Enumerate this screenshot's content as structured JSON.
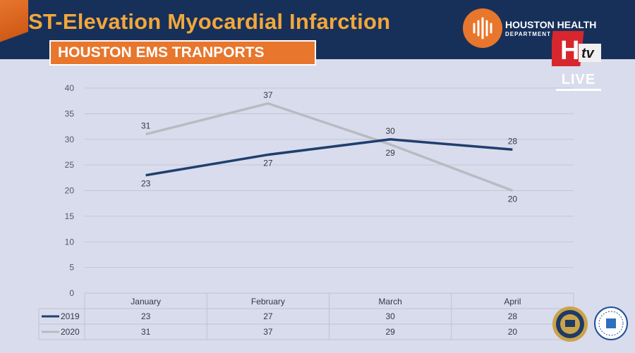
{
  "header": {
    "title": "ST-Elevation Myocardial Infarction",
    "subtitle": "HOUSTON EMS TRANPORTS",
    "org_name": "HOUSTON HEALTH",
    "org_dept": "DEPARTMENT",
    "tv_logo_text": "H tv",
    "live_label": "LIVE"
  },
  "colors": {
    "series_2019": "#1f3f6e",
    "series_2020": "#b9bbc2",
    "header_bg": "#17305a",
    "accent_orange": "#e8762c",
    "title_gold": "#f2a73b"
  },
  "chart_data": {
    "type": "line",
    "title": "ST-Elevation Myocardial Infarction",
    "subtitle": "HOUSTON EMS TRANPORTS",
    "categories": [
      "January",
      "February",
      "March",
      "April"
    ],
    "series": [
      {
        "name": "2019",
        "values": [
          23,
          27,
          30,
          28
        ]
      },
      {
        "name": "2020",
        "values": [
          31,
          37,
          29,
          20
        ]
      }
    ],
    "ylim": [
      0,
      40
    ],
    "yticks": [
      0,
      5,
      10,
      15,
      20,
      25,
      30,
      35,
      40
    ],
    "grid": true,
    "data_labels": true,
    "legend": "data-table-below"
  }
}
